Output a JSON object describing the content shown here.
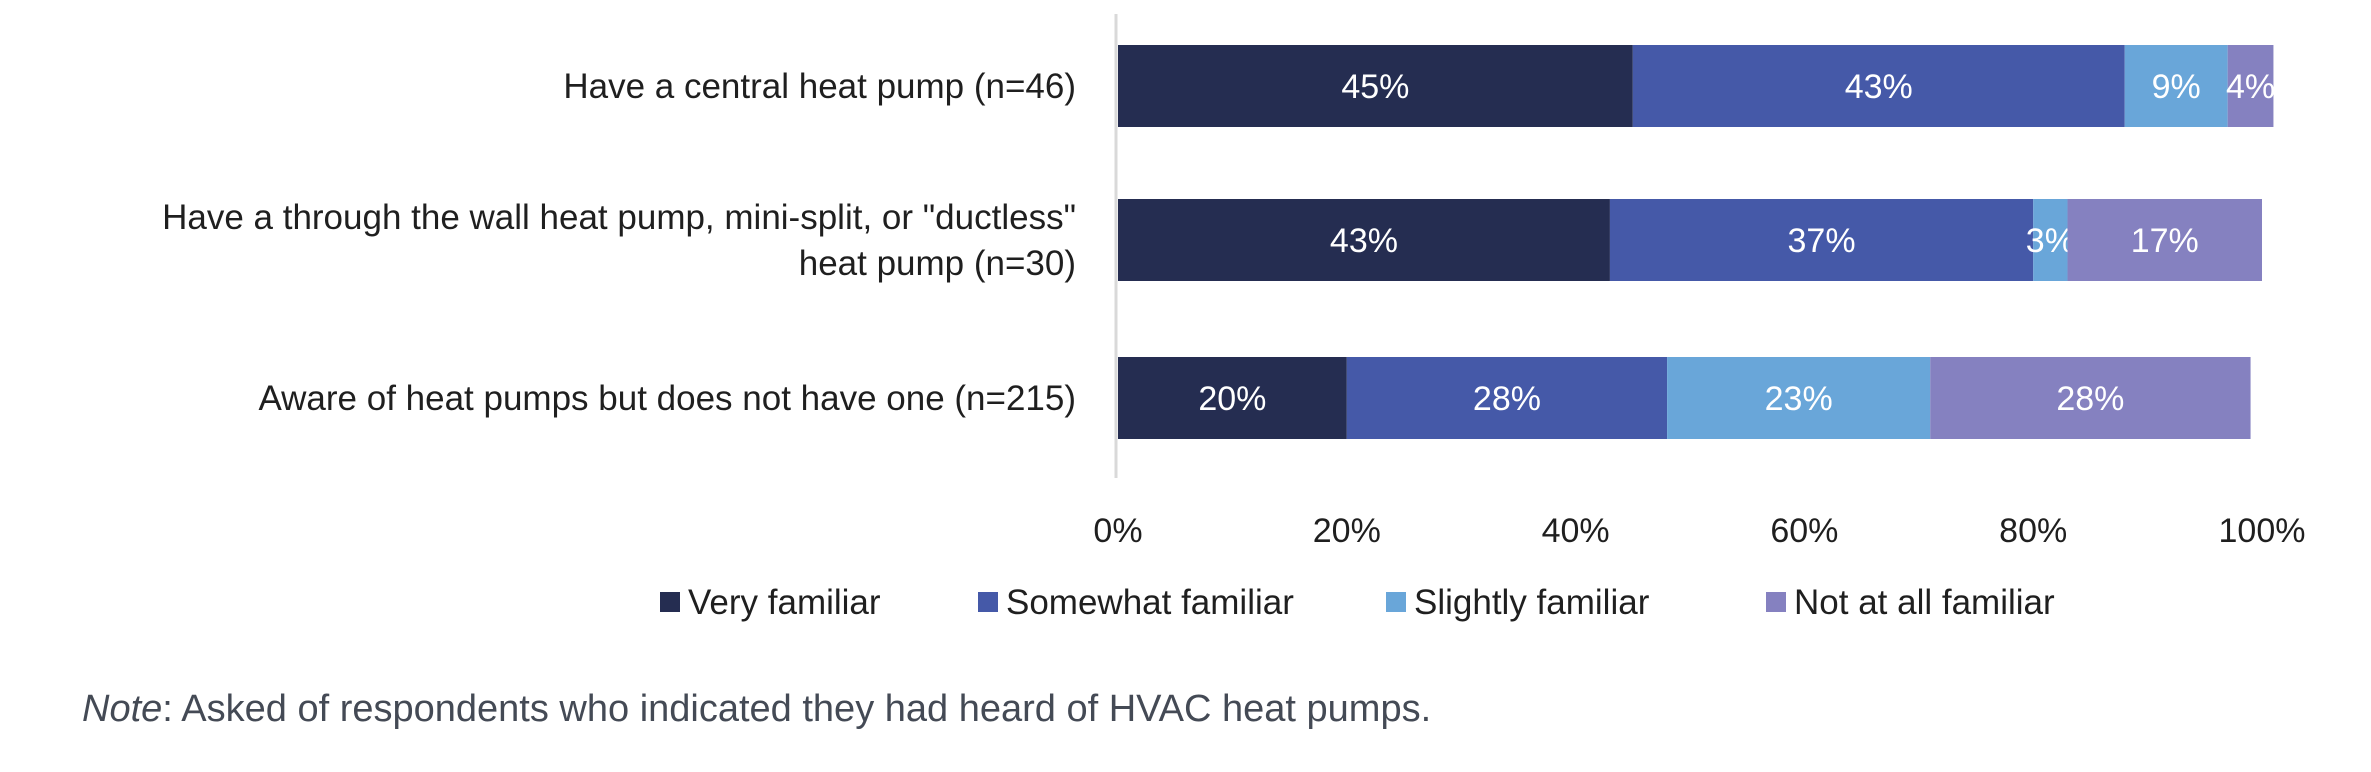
{
  "chart_data": {
    "type": "bar",
    "orientation": "horizontal",
    "stacked": true,
    "title": "",
    "xlabel": "",
    "ylabel": "",
    "xlim": [
      0,
      100
    ],
    "x_ticks": [
      "0%",
      "20%",
      "40%",
      "60%",
      "80%",
      "100%"
    ],
    "categories": [
      [
        "Have a central heat pump (n=46)"
      ],
      [
        "Have a through the wall heat pump, mini-split, or \"ductless\"",
        "heat pump (n=30)"
      ],
      [
        "Aware of heat pumps but does not have one (n=215)"
      ]
    ],
    "series": [
      {
        "name": "Very familiar",
        "color": "#252d51",
        "values": [
          45,
          43,
          20
        ]
      },
      {
        "name": "Somewhat familiar",
        "color": "#4559a8",
        "values": [
          43,
          37,
          28
        ]
      },
      {
        "name": "Slightly familiar",
        "color": "#69a6d9",
        "values": [
          9,
          3,
          23
        ]
      },
      {
        "name": "Not at all familiar",
        "color": "#8581c0",
        "values": [
          4,
          17,
          28
        ]
      }
    ],
    "value_suffix": "%",
    "grid": false,
    "legend_position": "bottom"
  },
  "note": {
    "label": "Note",
    "text": ": Asked of respondents who indicated they had heard of HVAC heat pumps."
  }
}
